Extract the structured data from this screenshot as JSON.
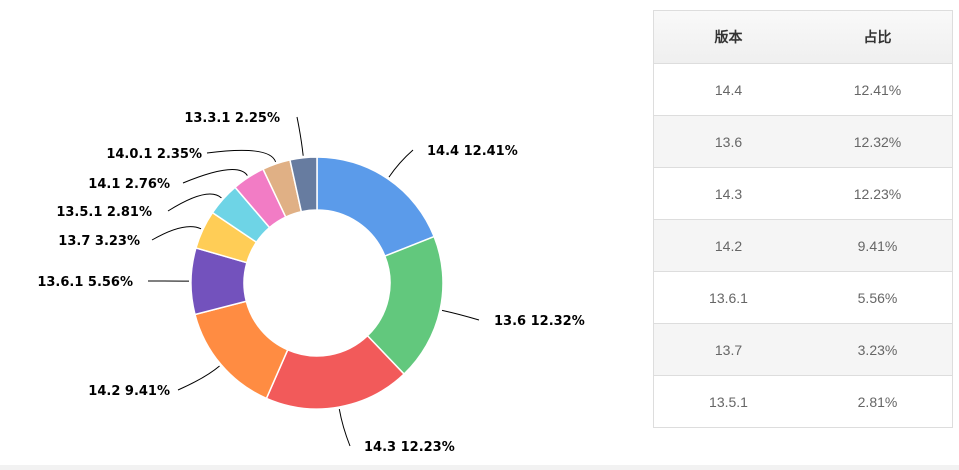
{
  "chart_data": {
    "type": "pie",
    "variant": "donut",
    "start_angle_deg": 0,
    "direction": "clockwise",
    "slices": [
      {
        "label": "14.4 12.41%",
        "version": "14.4",
        "value": 12.41,
        "color": "#5b9bea"
      },
      {
        "label": "13.6 12.32%",
        "version": "13.6",
        "value": 12.32,
        "color": "#62c87d"
      },
      {
        "label": "14.3 12.23%",
        "version": "14.3",
        "value": 12.23,
        "color": "#f25a5a"
      },
      {
        "label": "14.2 9.41%",
        "version": "14.2",
        "value": 9.41,
        "color": "#ff8c42"
      },
      {
        "label": "13.6.1 5.56%",
        "version": "13.6.1",
        "value": 5.56,
        "color": "#7352bd"
      },
      {
        "label": "13.7 3.23%",
        "version": "13.7",
        "value": 3.23,
        "color": "#ffcd56"
      },
      {
        "label": "13.5.1 2.81%",
        "version": "13.5.1",
        "value": 2.81,
        "color": "#6ed4e6"
      },
      {
        "label": "14.1 2.76%",
        "version": "14.1",
        "value": 2.76,
        "color": "#f27cc5"
      },
      {
        "label": "14.0.1 2.35%",
        "version": "14.0.1",
        "value": 2.35,
        "color": "#e0b085"
      },
      {
        "label": "13.3.1 2.25%",
        "version": "13.3.1",
        "value": 2.25,
        "color": "#677ca0"
      }
    ]
  },
  "table": {
    "header_version": "版本",
    "header_share": "占比",
    "rows": [
      {
        "version": "14.4",
        "share": "12.41%"
      },
      {
        "version": "13.6",
        "share": "12.32%"
      },
      {
        "version": "14.3",
        "share": "12.23%"
      },
      {
        "version": "14.2",
        "share": "9.41%"
      },
      {
        "version": "13.6.1",
        "share": "5.56%"
      },
      {
        "version": "13.7",
        "share": "3.23%"
      },
      {
        "version": "13.5.1",
        "share": "2.81%"
      }
    ]
  }
}
